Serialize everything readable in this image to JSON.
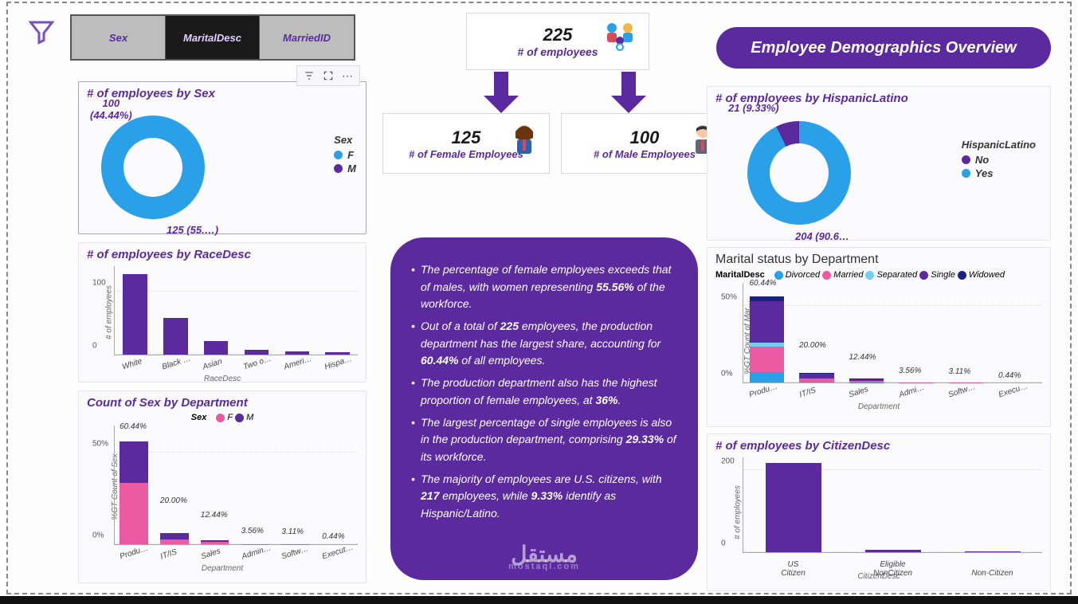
{
  "colors": {
    "brand": "#5b2a9e",
    "brand_light": "#7a4fc0",
    "blue": "#2aa0e8",
    "pink": "#ec5aa4",
    "lightblue": "#6fd0f2",
    "navy": "#1a237e",
    "grey_bg": "#bdbdbd",
    "dark_tab": "#1a1a1a"
  },
  "slicer": {
    "tabs": [
      "Sex",
      "MaritalDesc",
      "MarriedID"
    ],
    "active_index": 1
  },
  "title_banner": "Employee Demographics Overview",
  "kpi": {
    "total": {
      "value": "225",
      "label": "# of employees"
    },
    "female": {
      "value": "125",
      "label": "# of Female Employees"
    },
    "male": {
      "value": "100",
      "label": "# of Male Employees"
    }
  },
  "donut_sex": {
    "title": "# of employees by Sex",
    "legend_title": "Sex",
    "series": [
      {
        "label": "F",
        "value": 125,
        "pct": 55.56,
        "color": "#2aa0e8",
        "display": "125 (55.…)"
      },
      {
        "label": "M",
        "value": 100,
        "pct": 44.44,
        "color": "#5b2a9e",
        "display_top": "100",
        "display_bot": "(44.44%)"
      }
    ]
  },
  "donut_hl": {
    "title": "# of employees by HispanicLatino",
    "legend_title": "HispanicLatino",
    "series": [
      {
        "label": "No",
        "value": 204,
        "pct": 90.67,
        "color": "#5b2a9e",
        "display": "204 (90.6…"
      },
      {
        "label": "Yes",
        "value": 21,
        "pct": 9.33,
        "color": "#2aa0e8",
        "display": "21 (9.33%)"
      }
    ]
  },
  "bar_race": {
    "title": "# of employees by RaceDesc",
    "ylabel": "# of employees",
    "xlabel": "RaceDesc",
    "ymax": 140,
    "yticks": [
      0,
      100
    ],
    "bar_color": "#5b2a9e",
    "categories": [
      "White",
      "Black …",
      "Asian",
      "Two o…",
      "Ameri…",
      "Hispa…"
    ],
    "values": [
      128,
      58,
      22,
      8,
      5,
      4
    ]
  },
  "bar_dept_sex": {
    "title": "Count of Sex by Department",
    "ylabel": "%GT Count of Sex",
    "xlabel": "Department",
    "legend_title": "Sex",
    "series_colors": {
      "F": "#ec5aa4",
      "M": "#5b2a9e"
    },
    "ymax": 65,
    "yticks": [
      "0%",
      "50%"
    ],
    "categories": [
      "Produ…",
      "IT/IS",
      "Sales",
      "Admin…",
      "Softw…",
      "Execut…"
    ],
    "labels": [
      "60.44%",
      "20.00%",
      "12.44%",
      "3.56%",
      "3.11%",
      "0.44%"
    ],
    "stacks": [
      {
        "F": 36.0,
        "M": 24.44
      },
      {
        "F": 9.0,
        "M": 11.0
      },
      {
        "F": 6.5,
        "M": 5.94
      },
      {
        "F": 2.0,
        "M": 1.56
      },
      {
        "F": 1.4,
        "M": 1.71
      },
      {
        "F": 0.2,
        "M": 0.24
      }
    ]
  },
  "bar_marital": {
    "title": "Marital status by Department",
    "ylabel": "%GT Count of Mar…",
    "xlabel": "Department",
    "legend_title": "MaritalDesc",
    "legend_items": [
      {
        "label": "Divorced",
        "color": "#2aa0e8"
      },
      {
        "label": "Married",
        "color": "#ec5aa4"
      },
      {
        "label": "Separated",
        "color": "#6fd0f2"
      },
      {
        "label": "Single",
        "color": "#5b2a9e"
      },
      {
        "label": "Widowed",
        "color": "#1a237e"
      }
    ],
    "ymax": 65,
    "yticks": [
      "0%",
      "50%"
    ],
    "categories": [
      "Produ…",
      "IT/IS",
      "Sales",
      "Admi…",
      "Softw…",
      "Execu…"
    ],
    "labels": [
      "60.44%",
      "20.00%",
      "12.44%",
      "3.56%",
      "3.11%",
      "0.44%"
    ],
    "stacks": [
      {
        "Divorced": 7,
        "Married": 18,
        "Separated": 3,
        "Single": 29.33,
        "Widowed": 3.11
      },
      {
        "Divorced": 2,
        "Married": 6,
        "Separated": 1,
        "Single": 10,
        "Widowed": 1
      },
      {
        "Divorced": 1.2,
        "Married": 4,
        "Separated": 0.8,
        "Single": 5.5,
        "Widowed": 0.94
      },
      {
        "Divorced": 0.3,
        "Married": 1.2,
        "Separated": 0.2,
        "Single": 1.6,
        "Widowed": 0.26
      },
      {
        "Divorced": 0.3,
        "Married": 1.0,
        "Separated": 0.2,
        "Single": 1.4,
        "Widowed": 0.21
      },
      {
        "Divorced": 0.05,
        "Married": 0.15,
        "Separated": 0.02,
        "Single": 0.2,
        "Widowed": 0.02
      }
    ]
  },
  "bar_citizen": {
    "title": "# of employees by CitizenDesc",
    "ylabel": "# of employees",
    "xlabel": "CitizenDesc",
    "ymax": 230,
    "yticks": [
      0,
      200
    ],
    "bar_color": "#5b2a9e",
    "categories": [
      "US Citizen",
      "Eligible NonCitizen",
      "Non-Citizen"
    ],
    "values": [
      217,
      6,
      2
    ]
  },
  "insights": {
    "bullets": [
      "The percentage of female employees exceeds that of males, with women representing <b>55.56%</b> of the workforce.",
      "Out of a total of <b>225</b> employees, the production department has the largest share, accounting for <b>60.44%</b> of all employees.",
      "The production department also has the highest proportion of female employees, at <b>36%</b>.",
      "The largest percentage of single employees is also in the production department, comprising <b>29.33%</b> of its workforce.",
      "The majority of employees are U.S. citizens, with <b>217</b> employees, while <b>9.33%</b> identify as Hispanic/Latino."
    ]
  },
  "watermark": {
    "main": "مستقل",
    "sub": "mostaql.com"
  }
}
